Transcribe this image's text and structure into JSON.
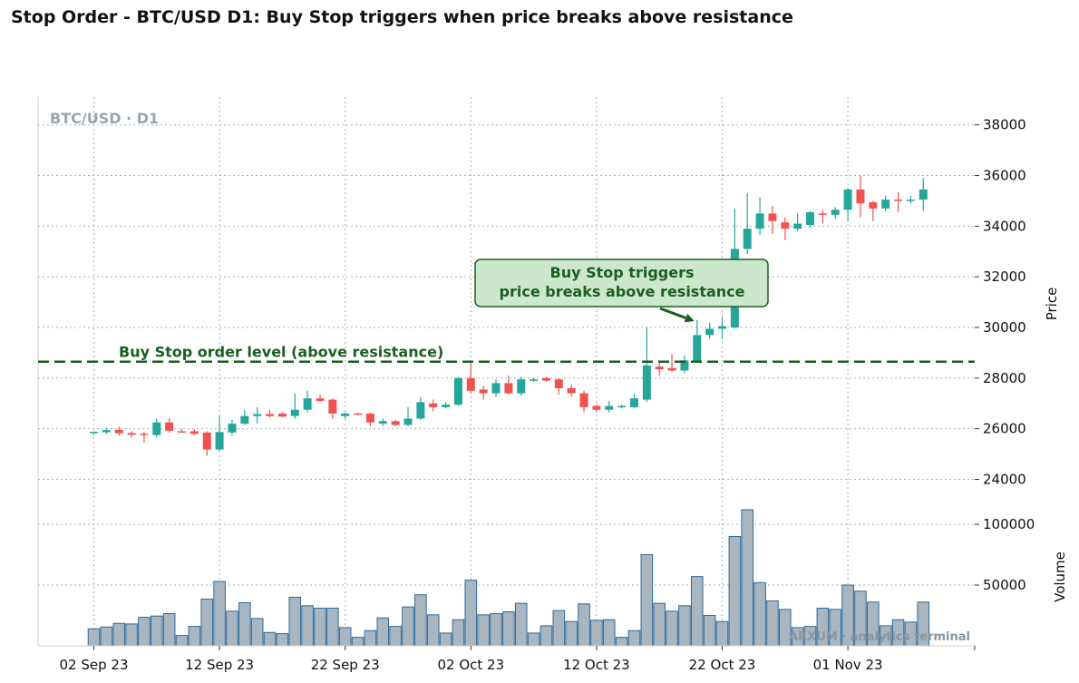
{
  "title": "Stop Order - BTC/USD D1: Buy Stop triggers when price breaks above resistance",
  "chart_data": [
    {
      "type": "candlestick",
      "watermark": "BTC/USD · D1",
      "ylabel": "Price",
      "ylim": [
        22800,
        39100
      ],
      "yticks": [
        "24000",
        "26000",
        "28000",
        "30000",
        "32000",
        "34000",
        "36000",
        "38000"
      ],
      "ytick_values": [
        24000,
        26000,
        28000,
        30000,
        32000,
        34000,
        36000,
        38000
      ],
      "xticks": [
        "02 Sep 23",
        "12 Sep 23",
        "22 Sep 23",
        "02 Oct 23",
        "12 Oct 23",
        "22 Oct 23",
        "01 Nov 23"
      ],
      "xtick_days": [
        0,
        10,
        20,
        30,
        40,
        50,
        60
      ],
      "x_start_day": 0,
      "grid": true,
      "colors": {
        "up": "#26a69a",
        "down": "#ef5350",
        "stop_line": "#1b5e20",
        "annotation_bg": "#cce8cc"
      },
      "stop_level": {
        "value": 28650,
        "label": "Buy Stop order level (above resistance)"
      },
      "annotation": {
        "text_lines": [
          "Buy Stop triggers",
          "price breaks above resistance"
        ],
        "arrow_target_day": 48,
        "arrow_target_price": 30250
      },
      "candles": [
        {
          "o": 25830,
          "h": 25900,
          "l": 25760,
          "c": 25880
        },
        {
          "o": 25860,
          "h": 26050,
          "l": 25790,
          "c": 25950
        },
        {
          "o": 25960,
          "h": 26080,
          "l": 25720,
          "c": 25820
        },
        {
          "o": 25830,
          "h": 25900,
          "l": 25650,
          "c": 25760
        },
        {
          "o": 25800,
          "h": 25870,
          "l": 25450,
          "c": 25750
        },
        {
          "o": 25750,
          "h": 26400,
          "l": 25650,
          "c": 26250
        },
        {
          "o": 26250,
          "h": 26420,
          "l": 25850,
          "c": 25920
        },
        {
          "o": 25900,
          "h": 26000,
          "l": 25850,
          "c": 25870
        },
        {
          "o": 25900,
          "h": 25980,
          "l": 25750,
          "c": 25800
        },
        {
          "o": 25850,
          "h": 25900,
          "l": 24930,
          "c": 25180
        },
        {
          "o": 25180,
          "h": 26500,
          "l": 25130,
          "c": 25870
        },
        {
          "o": 25850,
          "h": 26350,
          "l": 25750,
          "c": 26200
        },
        {
          "o": 26200,
          "h": 26750,
          "l": 26150,
          "c": 26500
        },
        {
          "o": 26500,
          "h": 26850,
          "l": 26200,
          "c": 26580
        },
        {
          "o": 26580,
          "h": 26750,
          "l": 26450,
          "c": 26500
        },
        {
          "o": 26600,
          "h": 26650,
          "l": 26450,
          "c": 26480
        },
        {
          "o": 26500,
          "h": 27400,
          "l": 26400,
          "c": 26750
        },
        {
          "o": 26750,
          "h": 27500,
          "l": 26650,
          "c": 27200
        },
        {
          "o": 27200,
          "h": 27350,
          "l": 27050,
          "c": 27100
        },
        {
          "o": 27150,
          "h": 27200,
          "l": 26400,
          "c": 26600
        },
        {
          "o": 26500,
          "h": 26650,
          "l": 26400,
          "c": 26600
        },
        {
          "o": 26600,
          "h": 26650,
          "l": 26550,
          "c": 26570
        },
        {
          "o": 26600,
          "h": 26650,
          "l": 26100,
          "c": 26250
        },
        {
          "o": 26200,
          "h": 26400,
          "l": 26100,
          "c": 26300
        },
        {
          "o": 26300,
          "h": 26350,
          "l": 26100,
          "c": 26150
        },
        {
          "o": 26150,
          "h": 26850,
          "l": 26100,
          "c": 26400
        },
        {
          "o": 26400,
          "h": 27250,
          "l": 26350,
          "c": 27050
        },
        {
          "o": 27000,
          "h": 27150,
          "l": 26700,
          "c": 26850
        },
        {
          "o": 26850,
          "h": 27050,
          "l": 26800,
          "c": 26950
        },
        {
          "o": 26950,
          "h": 28050,
          "l": 26900,
          "c": 28000
        },
        {
          "o": 28000,
          "h": 28600,
          "l": 27400,
          "c": 27500
        },
        {
          "o": 27550,
          "h": 27700,
          "l": 27150,
          "c": 27400
        },
        {
          "o": 27400,
          "h": 27950,
          "l": 27250,
          "c": 27800
        },
        {
          "o": 27800,
          "h": 28100,
          "l": 27350,
          "c": 27400
        },
        {
          "o": 27400,
          "h": 28050,
          "l": 27300,
          "c": 27950
        },
        {
          "o": 27900,
          "h": 28000,
          "l": 27850,
          "c": 27950
        },
        {
          "o": 28000,
          "h": 28050,
          "l": 27850,
          "c": 27900
        },
        {
          "o": 27950,
          "h": 28000,
          "l": 27350,
          "c": 27600
        },
        {
          "o": 27600,
          "h": 27750,
          "l": 27250,
          "c": 27400
        },
        {
          "o": 27400,
          "h": 27500,
          "l": 26650,
          "c": 26850
        },
        {
          "o": 26900,
          "h": 26950,
          "l": 26650,
          "c": 26750
        },
        {
          "o": 26750,
          "h": 27100,
          "l": 26650,
          "c": 26900
        },
        {
          "o": 26850,
          "h": 26950,
          "l": 26800,
          "c": 26900
        },
        {
          "o": 26850,
          "h": 27400,
          "l": 26800,
          "c": 27200
        },
        {
          "o": 27150,
          "h": 30000,
          "l": 27050,
          "c": 28500
        },
        {
          "o": 28450,
          "h": 28700,
          "l": 28100,
          "c": 28350
        },
        {
          "o": 28400,
          "h": 28950,
          "l": 28250,
          "c": 28300
        },
        {
          "o": 28300,
          "h": 28900,
          "l": 28200,
          "c": 28700
        },
        {
          "o": 28650,
          "h": 30300,
          "l": 28600,
          "c": 29700
        },
        {
          "o": 29700,
          "h": 30200,
          "l": 29550,
          "c": 29950
        },
        {
          "o": 29950,
          "h": 30400,
          "l": 29550,
          "c": 30050
        },
        {
          "o": 30000,
          "h": 34700,
          "l": 29950,
          "c": 33100
        },
        {
          "o": 33100,
          "h": 35300,
          "l": 32900,
          "c": 33900
        },
        {
          "o": 33900,
          "h": 35150,
          "l": 33650,
          "c": 34500
        },
        {
          "o": 34500,
          "h": 34800,
          "l": 33700,
          "c": 34200
        },
        {
          "o": 34150,
          "h": 34350,
          "l": 33450,
          "c": 33900
        },
        {
          "o": 33900,
          "h": 34500,
          "l": 33800,
          "c": 34100
        },
        {
          "o": 34050,
          "h": 34600,
          "l": 33950,
          "c": 34550
        },
        {
          "o": 34500,
          "h": 34650,
          "l": 34100,
          "c": 34450
        },
        {
          "o": 34450,
          "h": 34750,
          "l": 34300,
          "c": 34650
        },
        {
          "o": 34650,
          "h": 35500,
          "l": 34200,
          "c": 35450
        },
        {
          "o": 35450,
          "h": 36000,
          "l": 34350,
          "c": 34900
        },
        {
          "o": 34950,
          "h": 35000,
          "l": 34200,
          "c": 34700
        },
        {
          "o": 34700,
          "h": 35200,
          "l": 34600,
          "c": 35050
        },
        {
          "o": 35050,
          "h": 35350,
          "l": 34550,
          "c": 35000
        },
        {
          "o": 35000,
          "h": 35200,
          "l": 34900,
          "c": 35050
        },
        {
          "o": 35050,
          "h": 35900,
          "l": 34600,
          "c": 35450
        }
      ]
    },
    {
      "type": "bar",
      "ylabel": "Volume",
      "watermark": "ARXUM · analytics terminal",
      "ylim": [
        0,
        112000
      ],
      "yticks": [
        "50000",
        "100000"
      ],
      "ytick_values": [
        50000,
        100000
      ],
      "colors": {
        "fill": "#a9b6bf",
        "edge": "#2b6a9e"
      },
      "values": [
        14000,
        15500,
        18500,
        18000,
        23500,
        24500,
        26500,
        8500,
        16000,
        38500,
        53000,
        28500,
        35500,
        22500,
        11000,
        10000,
        40000,
        33000,
        31000,
        31000,
        15000,
        7000,
        12500,
        23000,
        16000,
        32000,
        42000,
        25500,
        10500,
        21500,
        54000,
        25500,
        26500,
        28000,
        35000,
        10500,
        16500,
        29000,
        20000,
        34500,
        21000,
        21500,
        7000,
        12500,
        75000,
        35000,
        28500,
        33000,
        57000,
        25000,
        20000,
        90000,
        112000,
        52000,
        37000,
        30000,
        15000,
        16000,
        31000,
        30000,
        50000,
        45000,
        36000,
        16500,
        21500,
        19500,
        36000
      ]
    }
  ]
}
